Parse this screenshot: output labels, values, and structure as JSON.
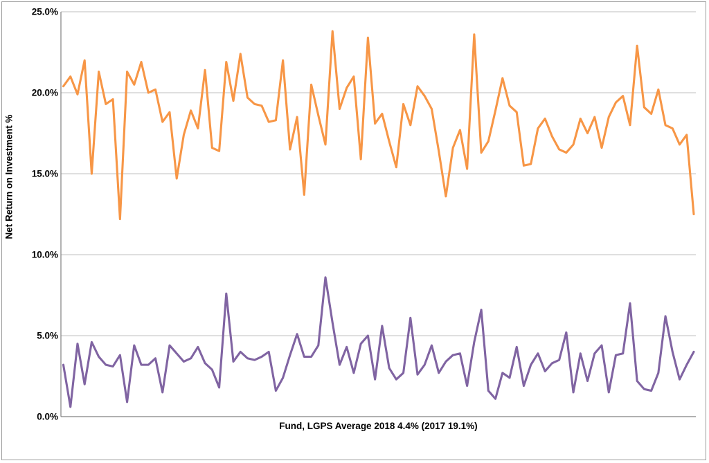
{
  "chart_data": {
    "type": "line",
    "title": "",
    "xlabel": "Fund, LGPS Average 2018 4.4% (2017 19.1%)",
    "ylabel": "Net Return on Investment %",
    "y_ticks": [
      "0.0%",
      "5.0%",
      "10.0%",
      "15.0%",
      "20.0%",
      "25.0%"
    ],
    "ylim": [
      0,
      25
    ],
    "y_tick_step": 5,
    "grid": true,
    "legend_position": "none",
    "x_axis": "one point per LGPS fund, no x tick labels shown",
    "n_points": 90,
    "series": [
      {
        "name": "2017 net return (orange)",
        "color": "#F79646",
        "values": [
          20.4,
          21.0,
          19.9,
          22.0,
          15.0,
          21.3,
          19.3,
          19.6,
          12.2,
          21.3,
          20.5,
          21.9,
          20.0,
          20.2,
          18.2,
          18.8,
          14.7,
          17.4,
          18.9,
          17.8,
          21.4,
          16.6,
          16.4,
          21.9,
          19.5,
          22.4,
          19.7,
          19.3,
          19.2,
          18.2,
          18.3,
          22.0,
          16.5,
          18.5,
          13.7,
          20.5,
          18.6,
          16.8,
          23.8,
          19.0,
          20.3,
          21.0,
          15.9,
          23.4,
          18.1,
          18.7,
          17.0,
          15.4,
          19.3,
          18.0,
          20.4,
          19.8,
          19.0,
          16.4,
          13.6,
          16.6,
          17.7,
          15.3,
          23.6,
          16.3,
          17.0,
          18.9,
          20.9,
          19.2,
          18.8,
          15.5,
          15.6,
          17.8,
          18.4,
          17.3,
          16.5,
          16.3,
          16.8,
          18.4,
          17.5,
          18.5,
          16.6,
          18.5,
          19.4,
          19.8,
          18.0,
          22.9,
          19.1,
          18.7,
          20.2,
          18.0,
          17.8,
          16.8,
          17.4,
          12.5
        ]
      },
      {
        "name": "2018 net return (purple)",
        "color": "#8064A2",
        "values": [
          3.2,
          0.6,
          4.5,
          2.0,
          4.6,
          3.7,
          3.2,
          3.1,
          3.8,
          0.9,
          4.4,
          3.2,
          3.2,
          3.6,
          1.5,
          4.4,
          3.9,
          3.4,
          3.6,
          4.3,
          3.3,
          2.9,
          1.8,
          7.6,
          3.4,
          4.0,
          3.6,
          3.5,
          3.7,
          4.0,
          1.6,
          2.4,
          3.8,
          5.1,
          3.7,
          3.7,
          4.4,
          8.6,
          5.8,
          3.2,
          4.3,
          2.7,
          4.5,
          5.0,
          2.3,
          5.6,
          3.0,
          2.3,
          2.7,
          6.1,
          2.6,
          3.2,
          4.4,
          2.7,
          3.4,
          3.8,
          3.9,
          1.9,
          4.6,
          6.6,
          1.6,
          1.1,
          2.7,
          2.4,
          4.3,
          1.9,
          3.2,
          3.9,
          2.8,
          3.3,
          3.5,
          5.2,
          1.5,
          3.9,
          2.2,
          3.9,
          4.4,
          1.5,
          3.8,
          3.9,
          7.0,
          2.2,
          1.7,
          1.6,
          2.7,
          6.2,
          4.0,
          2.3,
          3.2,
          4.0
        ]
      }
    ],
    "axis_color": "#808080",
    "gridline_color": "#BFBFBF",
    "background": "#FFFFFF"
  }
}
